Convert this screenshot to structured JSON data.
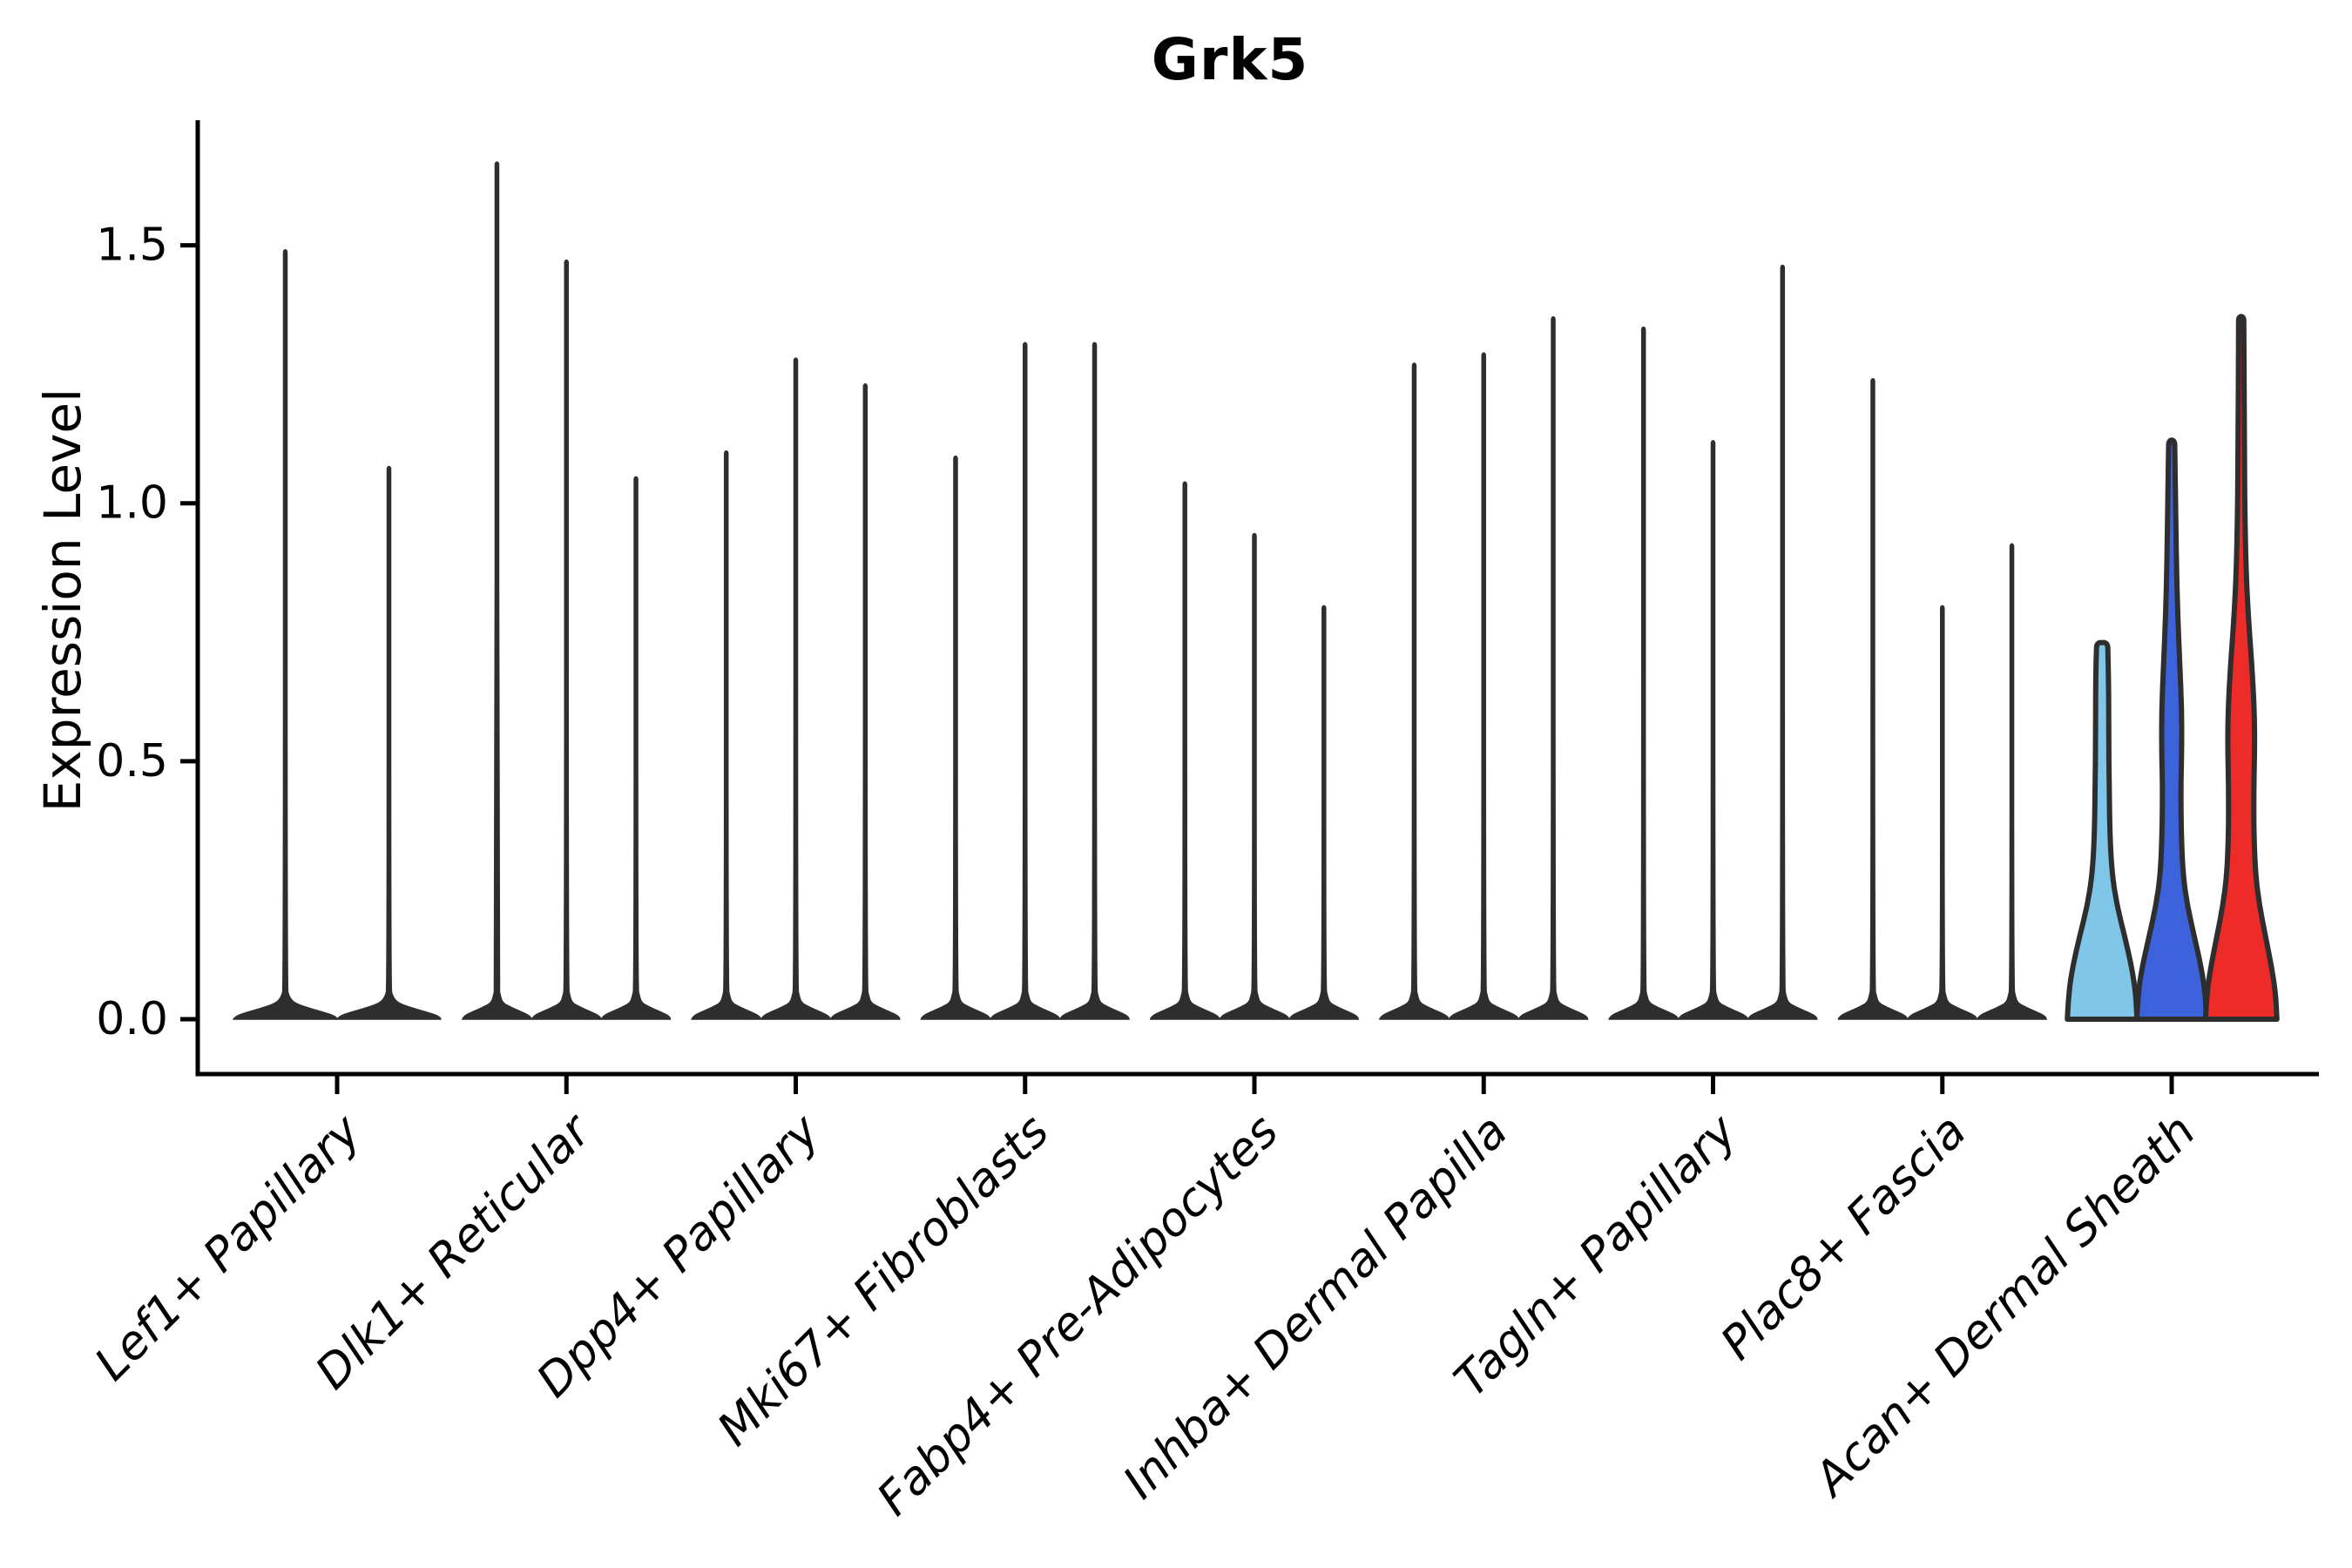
{
  "title": "Grk5",
  "y_axis": {
    "label": "Expression Level",
    "tick_labels": [
      "0.0",
      "0.5",
      "1.0",
      "1.5"
    ]
  },
  "chart_data": {
    "type": "violin",
    "title": "Grk5",
    "xlabel": "",
    "ylabel": "Expression Level",
    "ylim": [
      -0.11,
      1.74
    ],
    "yticks": [
      0.0,
      0.5,
      1.0,
      1.5
    ],
    "ytick_labels": [
      "0.0",
      "0.5",
      "1.0",
      "1.5"
    ],
    "grid": false,
    "legend": "none",
    "axis_color": "#000000",
    "violin_outline_color": "#2e2e2e",
    "default_violin_color": "#2e2e2e",
    "note": "Most violins collapse to thin spikes at 0 with a wide flat base; only the last group is colored",
    "groups": [
      {
        "label": "Lef1+ Papillary",
        "violins": [
          {
            "max": 1.49
          },
          {
            "max": 1.07
          }
        ]
      },
      {
        "label": "Dlk1+ Reticular",
        "violins": [
          {
            "max": 1.66
          },
          {
            "max": 1.47
          },
          {
            "max": 1.05
          }
        ]
      },
      {
        "label": "Dpp4+ Papillary",
        "violins": [
          {
            "max": 1.1
          },
          {
            "max": 1.28
          },
          {
            "max": 1.23
          }
        ]
      },
      {
        "label": "Mki67+ Fibroblasts",
        "violins": [
          {
            "max": 1.09
          },
          {
            "max": 1.31
          },
          {
            "max": 1.31
          }
        ]
      },
      {
        "label": "Fabp4+ Pre-Adipocytes",
        "violins": [
          {
            "max": 1.04
          },
          {
            "max": 0.94
          },
          {
            "max": 0.8
          }
        ]
      },
      {
        "label": "Inhba+ Dermal Papilla",
        "violins": [
          {
            "max": 1.27
          },
          {
            "max": 1.29
          },
          {
            "max": 1.36
          }
        ]
      },
      {
        "label": "Tagln+ Papillary",
        "violins": [
          {
            "max": 1.34
          },
          {
            "max": 1.12
          },
          {
            "max": 1.46
          }
        ]
      },
      {
        "label": "Plac8+ Fascia",
        "violins": [
          {
            "max": 1.24
          },
          {
            "max": 0.8
          },
          {
            "max": 0.92
          }
        ]
      },
      {
        "label": "Acan+ Dermal Sheath",
        "violins": [
          {
            "max": 0.73,
            "fill": "#7FC6E8",
            "flat_top": true,
            "profile": [
              [
                0,
                40
              ],
              [
                0.05,
                38.5
              ],
              [
                0.1,
                34
              ],
              [
                0.16,
                26
              ],
              [
                0.22,
                17
              ],
              [
                0.28,
                11.5
              ],
              [
                0.35,
                9
              ],
              [
                0.45,
                8
              ],
              [
                0.55,
                7.5
              ],
              [
                0.65,
                7.5
              ],
              [
                0.73,
                6.5
              ]
            ]
          },
          {
            "max": 1.12,
            "fill": "#3C63DC",
            "profile": [
              [
                0,
                40
              ],
              [
                0.05,
                38.5
              ],
              [
                0.1,
                34
              ],
              [
                0.16,
                26
              ],
              [
                0.22,
                18
              ],
              [
                0.28,
                13
              ],
              [
                0.36,
                11
              ],
              [
                0.45,
                10.5
              ],
              [
                0.52,
                11.5
              ],
              [
                0.6,
                11.5
              ],
              [
                0.68,
                9.5
              ],
              [
                0.78,
                7
              ],
              [
                0.88,
                5.5
              ],
              [
                1.0,
                4.5
              ],
              [
                1.12,
                3.5
              ]
            ]
          },
          {
            "max": 1.36,
            "fill": "#ED2B28",
            "profile": [
              [
                0,
                41
              ],
              [
                0.05,
                39.5
              ],
              [
                0.1,
                35
              ],
              [
                0.16,
                28
              ],
              [
                0.22,
                21
              ],
              [
                0.28,
                16.5
              ],
              [
                0.36,
                14.5
              ],
              [
                0.45,
                14.5
              ],
              [
                0.53,
                15.5
              ],
              [
                0.6,
                15
              ],
              [
                0.68,
                12.5
              ],
              [
                0.76,
                9
              ],
              [
                0.85,
                6
              ],
              [
                0.95,
                4.5
              ],
              [
                1.1,
                3.5
              ],
              [
                1.36,
                3
              ]
            ]
          }
        ]
      }
    ]
  }
}
